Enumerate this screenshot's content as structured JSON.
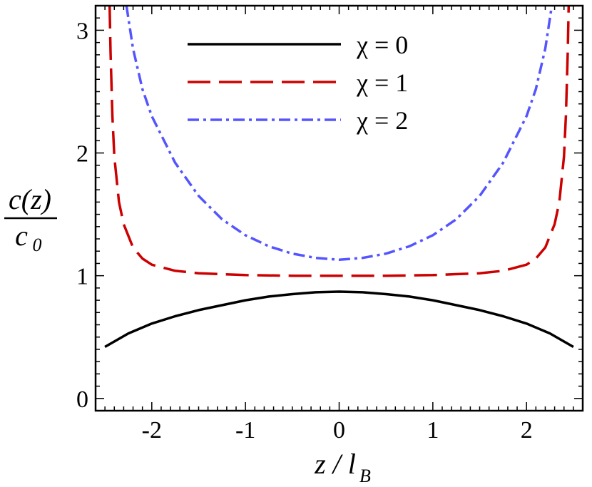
{
  "chart_data": {
    "type": "line",
    "title": "",
    "xlabel": "z / l",
    "xlabel_subscript": "B",
    "ylabel_numerator": "c(z)",
    "ylabel_denominator": "c",
    "ylabel_denominator_subscript": "0",
    "xlim": [
      -2.6,
      2.6
    ],
    "ylim": [
      -0.1,
      3.2
    ],
    "x_ticks": [
      -2,
      -1,
      0,
      1,
      2
    ],
    "x_tick_labels": [
      "-2",
      "-1",
      "0",
      "1",
      "2"
    ],
    "y_ticks": [
      0,
      1,
      2,
      3
    ],
    "y_tick_labels": [
      "0",
      "1",
      "2",
      "3"
    ],
    "grid": false,
    "legend_position": "top-center",
    "series": [
      {
        "name": "χ = 0",
        "color": "#000000",
        "style": "solid",
        "x": [
          -2.5,
          -2.25,
          -2.0,
          -1.75,
          -1.5,
          -1.25,
          -1.0,
          -0.75,
          -0.5,
          -0.25,
          0.0,
          0.25,
          0.5,
          0.75,
          1.0,
          1.25,
          1.5,
          1.75,
          2.0,
          2.25,
          2.5
        ],
        "y": [
          0.42,
          0.53,
          0.61,
          0.67,
          0.72,
          0.76,
          0.8,
          0.83,
          0.85,
          0.865,
          0.87,
          0.865,
          0.85,
          0.83,
          0.8,
          0.76,
          0.72,
          0.67,
          0.61,
          0.53,
          0.42
        ]
      },
      {
        "name": "χ = 1",
        "color": "#cc0000",
        "style": "dashed",
        "x": [
          -2.45,
          -2.44,
          -2.42,
          -2.4,
          -2.35,
          -2.3,
          -2.2,
          -2.1,
          -2.0,
          -1.75,
          -1.5,
          -1.0,
          -0.5,
          0.0,
          0.5,
          1.0,
          1.5,
          1.75,
          2.0,
          2.1,
          2.2,
          2.3,
          2.35,
          2.4,
          2.42,
          2.44,
          2.45
        ],
        "y": [
          3.2,
          2.82,
          2.3,
          1.97,
          1.6,
          1.42,
          1.23,
          1.14,
          1.09,
          1.04,
          1.02,
          1.005,
          1.0,
          1.0,
          1.0,
          1.005,
          1.02,
          1.04,
          1.09,
          1.14,
          1.23,
          1.42,
          1.6,
          1.97,
          2.3,
          2.82,
          3.2
        ]
      },
      {
        "name": "χ = 2",
        "color": "#5555ff",
        "style": "dashdot",
        "x": [
          -2.27,
          -2.2,
          -2.1,
          -2.0,
          -1.75,
          -1.5,
          -1.25,
          -1.0,
          -0.75,
          -0.5,
          -0.25,
          0.0,
          0.25,
          0.5,
          0.75,
          1.0,
          1.25,
          1.5,
          1.75,
          2.0,
          2.1,
          2.2,
          2.27
        ],
        "y": [
          3.2,
          2.85,
          2.52,
          2.3,
          1.92,
          1.65,
          1.46,
          1.33,
          1.24,
          1.18,
          1.145,
          1.13,
          1.145,
          1.18,
          1.24,
          1.33,
          1.46,
          1.65,
          1.92,
          2.3,
          2.52,
          2.85,
          3.2
        ]
      }
    ]
  }
}
